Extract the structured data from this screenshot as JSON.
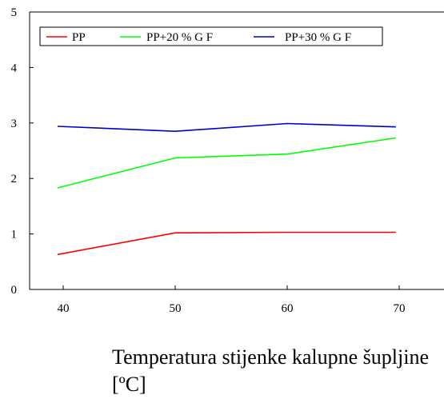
{
  "chart_data": {
    "type": "line",
    "title": "",
    "xlabel": "Temperatura stijenke kalupne šupljine [ºC]",
    "ylabel": "",
    "x": [
      39.5,
      50,
      60,
      69.7
    ],
    "xticks": [
      40,
      50,
      60,
      70
    ],
    "yticks": [
      0,
      1,
      2,
      3,
      4,
      5
    ],
    "xlim": [
      37,
      74
    ],
    "ylim": [
      0,
      5
    ],
    "grid": false,
    "legend_placement": "top",
    "series": [
      {
        "name": "PP",
        "color": "#ff0000",
        "values": [
          0.63,
          1.02,
          1.03,
          1.03
        ]
      },
      {
        "name": "PP+20 % G F",
        "color": "#00ff00",
        "values": [
          1.83,
          2.37,
          2.44,
          2.73
        ]
      },
      {
        "name": "PP+30 % G F",
        "color": "#0000cc",
        "values": [
          2.94,
          2.85,
          2.99,
          2.93
        ]
      }
    ]
  }
}
